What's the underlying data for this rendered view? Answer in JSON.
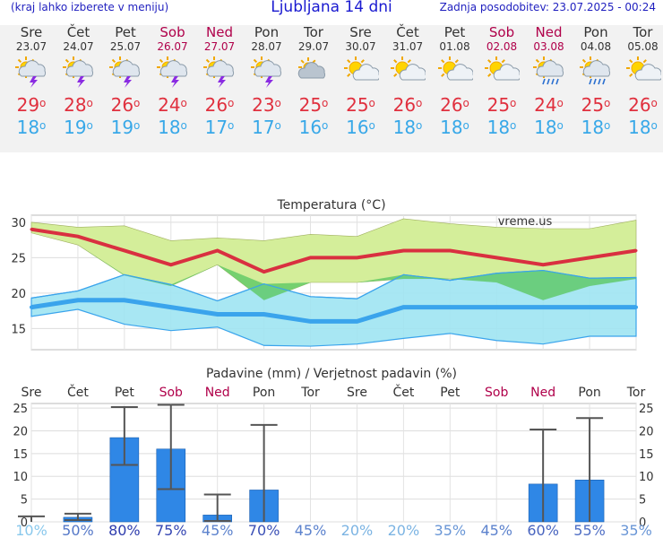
{
  "header": {
    "menu_hint": "(kraj lahko izberete v meniju)",
    "title": "Ljubljana 14 dni",
    "updated": "Zadnja posodobitev: 23.07.2025 - 00:24"
  },
  "days": [
    {
      "name": "Sre",
      "date": "23.07",
      "weekend": false,
      "icon": "thunderstorm-sun-icon",
      "tmax": "29",
      "tmin": "18"
    },
    {
      "name": "Čet",
      "date": "24.07",
      "weekend": false,
      "icon": "thunderstorm-sun-icon",
      "tmax": "28",
      "tmin": "19"
    },
    {
      "name": "Pet",
      "date": "25.07",
      "weekend": false,
      "icon": "thunderstorm-sun-icon",
      "tmax": "26",
      "tmin": "19"
    },
    {
      "name": "Sob",
      "date": "26.07",
      "weekend": true,
      "icon": "thunderstorm-sun-icon",
      "tmax": "24",
      "tmin": "18"
    },
    {
      "name": "Ned",
      "date": "27.07",
      "weekend": true,
      "icon": "thunderstorm-sun-icon",
      "tmax": "26",
      "tmin": "17"
    },
    {
      "name": "Pon",
      "date": "28.07",
      "weekend": false,
      "icon": "thunderstorm-sun-icon",
      "tmax": "23",
      "tmin": "17"
    },
    {
      "name": "Tor",
      "date": "29.07",
      "weekend": false,
      "icon": "cloudy-sun-icon",
      "tmax": "25",
      "tmin": "16"
    },
    {
      "name": "Sre",
      "date": "30.07",
      "weekend": false,
      "icon": "sun-cloud-icon",
      "tmax": "25",
      "tmin": "16"
    },
    {
      "name": "Čet",
      "date": "31.07",
      "weekend": false,
      "icon": "sun-cloud-icon",
      "tmax": "26",
      "tmin": "18"
    },
    {
      "name": "Pet",
      "date": "01.08",
      "weekend": false,
      "icon": "sun-cloud-icon",
      "tmax": "26",
      "tmin": "18"
    },
    {
      "name": "Sob",
      "date": "02.08",
      "weekend": true,
      "icon": "sun-cloud-icon",
      "tmax": "25",
      "tmin": "18"
    },
    {
      "name": "Ned",
      "date": "03.08",
      "weekend": true,
      "icon": "rain-sun-icon",
      "tmax": "24",
      "tmin": "18"
    },
    {
      "name": "Pon",
      "date": "04.08",
      "weekend": false,
      "icon": "rain-sun-icon",
      "tmax": "25",
      "tmin": "18"
    },
    {
      "name": "Tor",
      "date": "05.08",
      "weekend": false,
      "icon": "sun-cloud-icon",
      "tmax": "26",
      "tmin": "18"
    }
  ],
  "colors": {
    "max_line": "#d93040",
    "max_band": "#d4ee9a",
    "min_line": "#3aa4ec",
    "min_band": "#9ee4f2",
    "overlap_band": "#5cc864",
    "bar": "#2f87e6",
    "weekend_text": "#b0004a"
  },
  "chart_data": [
    {
      "type": "line",
      "title": "Temperatura (°C)",
      "watermark": "vreme.us",
      "ylim": [
        12,
        31
      ],
      "yticks": [
        15,
        20,
        25,
        30
      ],
      "grid": true,
      "x": [
        "23.07",
        "24.07",
        "25.07",
        "26.07",
        "27.07",
        "28.07",
        "29.07",
        "30.07",
        "31.07",
        "01.08",
        "02.08",
        "03.08",
        "04.08",
        "05.08"
      ],
      "series": [
        {
          "role": "max",
          "values": [
            29,
            28,
            26,
            24,
            26,
            23,
            25,
            25,
            26,
            26,
            25,
            24,
            25,
            26
          ],
          "band_low": [
            28.5,
            26.8,
            22.5,
            21,
            24,
            19,
            21.5,
            21.5,
            22,
            22,
            21.5,
            19,
            21,
            22
          ],
          "band_high": [
            30,
            29.3,
            29.5,
            27.4,
            27.8,
            27.4,
            28.3,
            28,
            30.5,
            29.8,
            29.3,
            29.1,
            29.1,
            30.3
          ]
        },
        {
          "role": "min",
          "values": [
            18,
            19,
            19,
            18,
            17,
            17,
            16,
            16,
            18,
            18,
            18,
            18,
            18,
            18
          ],
          "band_low": [
            16.7,
            17.7,
            15.6,
            14.7,
            15.2,
            12.6,
            12.5,
            12.8,
            13.6,
            14.3,
            13.3,
            12.8,
            13.9,
            13.9
          ],
          "band_high": [
            19.3,
            20.3,
            22.6,
            21.2,
            18.9,
            21.3,
            19.5,
            19.2,
            22.6,
            21.8,
            22.8,
            23.2,
            22.1,
            22.2
          ]
        }
      ]
    },
    {
      "type": "bar",
      "title": "Padavine (mm) / Verjetnost padavin (%)",
      "ylim": [
        0,
        26
      ],
      "yticks": [
        0,
        5,
        10,
        15,
        20,
        25
      ],
      "categories": [
        "Sre",
        "Čet",
        "Pet",
        "Sob",
        "Ned",
        "Pon",
        "Tor",
        "Sre",
        "Čet",
        "Pet",
        "Sob",
        "Ned",
        "Pon",
        "Tor"
      ],
      "weekend": [
        false,
        false,
        false,
        true,
        true,
        false,
        false,
        false,
        false,
        false,
        true,
        true,
        false,
        false
      ],
      "values": [
        0,
        1,
        18.5,
        16,
        1.5,
        7,
        0,
        0,
        0,
        0,
        0,
        8.3,
        9.2,
        0
      ],
      "err_low": [
        0,
        0.4,
        12.5,
        7.2,
        0.2,
        0,
        0,
        0,
        0,
        0,
        0,
        0,
        0,
        0
      ],
      "err_high": [
        1.2,
        1.8,
        25.2,
        25.7,
        6,
        21.3,
        0,
        0,
        0,
        0,
        0,
        20.3,
        22.8,
        0
      ],
      "probability": [
        "10%",
        "50%",
        "80%",
        "75%",
        "45%",
        "70%",
        "45%",
        "20%",
        "20%",
        "35%",
        "45%",
        "60%",
        "55%",
        "35%"
      ]
    }
  ]
}
